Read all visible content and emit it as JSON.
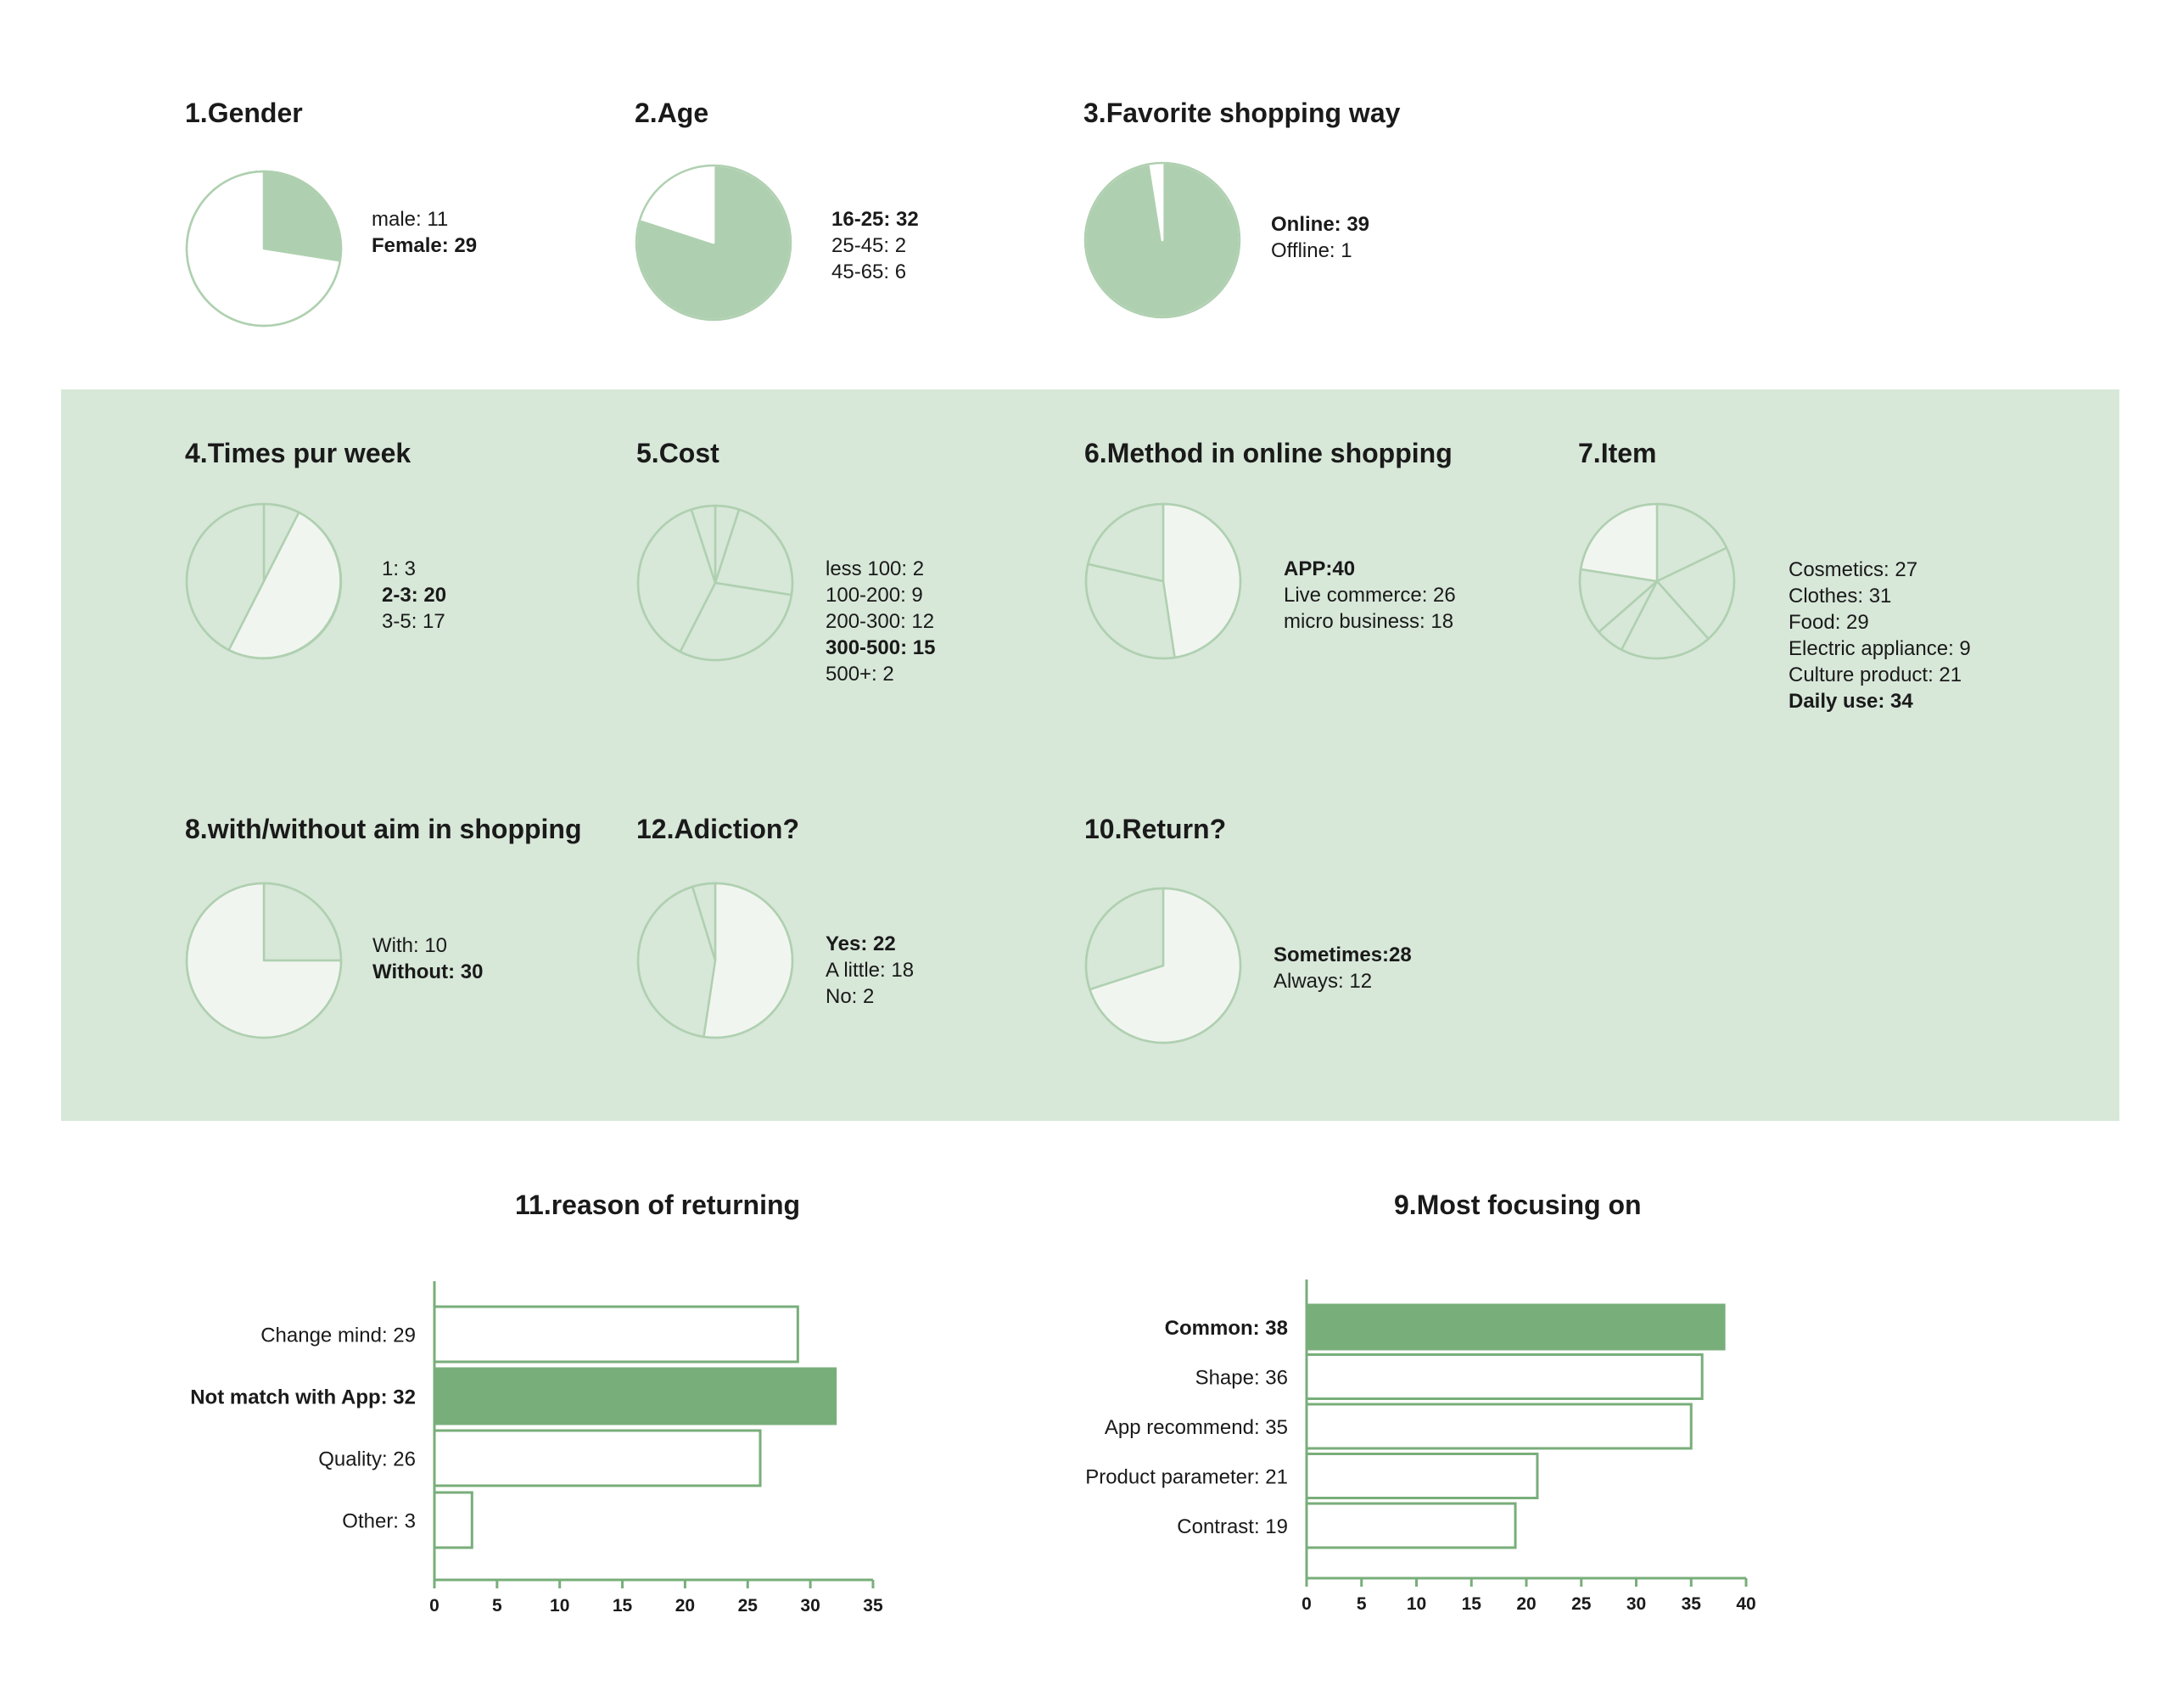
{
  "colors": {
    "accent": "#78ae7a",
    "light": "#afd0b0",
    "band": "#d7e7d8",
    "pale": "#f1f5f0",
    "white": "#ffffff"
  },
  "chart_data": [
    {
      "id": "gender",
      "type": "pie",
      "title": "1.Gender",
      "slices": [
        {
          "label": "male: 11",
          "value": 11,
          "bold": false
        },
        {
          "label": "Female: 29",
          "value": 29,
          "bold": true
        }
      ]
    },
    {
      "id": "age",
      "type": "pie",
      "title": "2.Age",
      "slices": [
        {
          "label": "16-25: 32",
          "value": 32,
          "bold": true
        },
        {
          "label": "25-45: 2",
          "value": 2,
          "bold": false
        },
        {
          "label": "45-65: 6",
          "value": 6,
          "bold": false
        }
      ]
    },
    {
      "id": "shopping",
      "type": "pie",
      "title": "3.Favorite shopping way",
      "slices": [
        {
          "label": "Online: 39",
          "value": 39,
          "bold": true
        },
        {
          "label": "Offline: 1",
          "value": 1,
          "bold": false
        }
      ]
    },
    {
      "id": "times",
      "type": "pie",
      "title": "4.Times pur week",
      "slices": [
        {
          "label": "1: 3",
          "value": 3,
          "bold": false
        },
        {
          "label": "2-3: 20",
          "value": 20,
          "bold": true
        },
        {
          "label": "3-5: 17",
          "value": 17,
          "bold": false
        }
      ]
    },
    {
      "id": "cost",
      "type": "pie",
      "title": "5.Cost",
      "slices": [
        {
          "label": "less 100: 2",
          "value": 2,
          "bold": false
        },
        {
          "label": "100-200: 9",
          "value": 9,
          "bold": false
        },
        {
          "label": "200-300: 12",
          "value": 12,
          "bold": false
        },
        {
          "label": "300-500: 15",
          "value": 15,
          "bold": true
        },
        {
          "label": "500+: 2",
          "value": 2,
          "bold": false
        }
      ]
    },
    {
      "id": "method",
      "type": "pie",
      "title": "6.Method in online shopping",
      "slices": [
        {
          "label": "APP:40",
          "value": 40,
          "bold": true
        },
        {
          "label": "Live commerce: 26",
          "value": 26,
          "bold": false
        },
        {
          "label": "micro business: 18",
          "value": 18,
          "bold": false
        }
      ]
    },
    {
      "id": "item",
      "type": "pie",
      "title": "7.Item",
      "slices": [
        {
          "label": "Cosmetics: 27",
          "value": 27,
          "bold": false
        },
        {
          "label": "Clothes: 31",
          "value": 31,
          "bold": false
        },
        {
          "label": "Food: 29",
          "value": 29,
          "bold": false
        },
        {
          "label": "Electric appliance: 9",
          "value": 9,
          "bold": false
        },
        {
          "label": "Culture product: 21",
          "value": 21,
          "bold": false
        },
        {
          "label": "Daily use: 34",
          "value": 34,
          "bold": true
        }
      ]
    },
    {
      "id": "aim",
      "type": "pie",
      "title": "8.with/without aim in shopping",
      "slices": [
        {
          "label": "With: 10",
          "value": 10,
          "bold": false
        },
        {
          "label": "Without: 30",
          "value": 30,
          "bold": true
        }
      ]
    },
    {
      "id": "addiction",
      "type": "pie",
      "title": "12.Adiction?",
      "slices": [
        {
          "label": "Yes: 22",
          "value": 22,
          "bold": true
        },
        {
          "label": "A little: 18",
          "value": 18,
          "bold": false
        },
        {
          "label": "No: 2",
          "value": 2,
          "bold": false
        }
      ]
    },
    {
      "id": "return",
      "type": "pie",
      "title": "10.Return?",
      "slices": [
        {
          "label": "Sometimes:28",
          "value": 28,
          "bold": true
        },
        {
          "label": "Always: 12",
          "value": 12,
          "bold": false
        }
      ]
    },
    {
      "id": "reasons",
      "type": "bar",
      "orientation": "horizontal",
      "title": "11.reason of returning",
      "categories": [
        "Change mind: 29",
        "Not match with App: 32",
        "Quality: 26",
        "Other: 3"
      ],
      "values": [
        29,
        32,
        26,
        3
      ],
      "highlight": 1,
      "xticks": [
        0,
        5,
        10,
        15,
        20,
        25,
        30,
        35
      ],
      "xlim": [
        0,
        35
      ]
    },
    {
      "id": "focus",
      "type": "bar",
      "orientation": "horizontal",
      "title": "9.Most focusing on",
      "categories": [
        "Common: 38",
        "Shape: 36",
        "App recommend: 35",
        "Product parameter: 21",
        "Contrast: 19"
      ],
      "values": [
        38,
        36,
        35,
        21,
        19
      ],
      "highlight": 0,
      "xticks": [
        0,
        5,
        10,
        15,
        20,
        25,
        30,
        35,
        40
      ],
      "xlim": [
        0,
        40
      ]
    }
  ]
}
